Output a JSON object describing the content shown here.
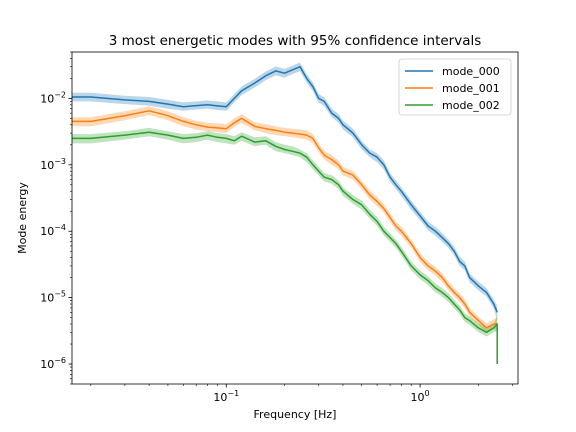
{
  "chart_data": {
    "type": "line",
    "title": "3 most energetic modes with 95% confidence intervals",
    "xlabel": "Frequency [Hz]",
    "ylabel": "Mode energy",
    "xscale": "log",
    "yscale": "log",
    "xlim": [
      0.016,
      3.2
    ],
    "ylim": [
      5e-07,
      0.05
    ],
    "x_ticks": [
      {
        "value": 0.1,
        "base": "10",
        "exp": "−1"
      },
      {
        "value": 1,
        "base": "10",
        "exp": "0"
      }
    ],
    "y_ticks": [
      {
        "value": 0.01,
        "base": "10",
        "exp": "−2"
      },
      {
        "value": 0.001,
        "base": "10",
        "exp": "−3"
      },
      {
        "value": 0.0001,
        "base": "10",
        "exp": "−4"
      },
      {
        "value": 1e-05,
        "base": "10",
        "exp": "−5"
      },
      {
        "value": 1e-06,
        "base": "10",
        "exp": "−6"
      }
    ],
    "grid": false,
    "legend_position": "top-right",
    "confidence_band": "95%",
    "series": [
      {
        "name": "mode_000",
        "color": "#1f77b4",
        "x": [
          0.016,
          0.02,
          0.03,
          0.04,
          0.05,
          0.06,
          0.07,
          0.08,
          0.09,
          0.1,
          0.11,
          0.12,
          0.14,
          0.16,
          0.18,
          0.2,
          0.22,
          0.24,
          0.26,
          0.28,
          0.3,
          0.32,
          0.35,
          0.38,
          0.4,
          0.45,
          0.5,
          0.55,
          0.6,
          0.65,
          0.7,
          0.75,
          0.8,
          0.9,
          1.0,
          1.1,
          1.2,
          1.3,
          1.4,
          1.5,
          1.6,
          1.7,
          1.8,
          2.0,
          2.2,
          2.4,
          2.5
        ],
        "values": [
          0.0105,
          0.0105,
          0.0095,
          0.009,
          0.0082,
          0.0075,
          0.0078,
          0.008,
          0.0077,
          0.0075,
          0.01,
          0.013,
          0.017,
          0.022,
          0.026,
          0.024,
          0.027,
          0.03,
          0.02,
          0.015,
          0.01,
          0.009,
          0.006,
          0.005,
          0.004,
          0.003,
          0.002,
          0.0015,
          0.0013,
          0.001,
          0.00065,
          0.0005,
          0.0004,
          0.00025,
          0.00017,
          0.00012,
          0.0001,
          8e-05,
          6.5e-05,
          5e-05,
          3.5e-05,
          3e-05,
          2e-05,
          1.5e-05,
          1.2e-05,
          8e-06,
          6e-06
        ],
        "ci_lower": [
          0.009,
          0.009,
          0.0082,
          0.0078,
          0.007,
          0.0065,
          0.0068,
          0.007,
          0.0067,
          0.0065,
          0.0087,
          0.0112,
          0.0146,
          0.0189,
          0.0224,
          0.0206,
          0.0232,
          0.0258,
          0.0172,
          0.0129,
          0.0086,
          0.0077,
          0.0052,
          0.0043,
          0.0034,
          0.0026,
          0.0017,
          0.0013,
          0.0011,
          0.00086,
          0.00056,
          0.00043,
          0.00034,
          0.00021,
          0.000146,
          0.000103,
          8.6e-05,
          6.9e-05,
          5.6e-05,
          4.3e-05,
          3e-05,
          2.6e-05,
          1.7e-05,
          1.29e-05,
          1.03e-05,
          6.9e-06,
          4.5e-06
        ],
        "ci_upper": [
          0.0122,
          0.0122,
          0.011,
          0.0105,
          0.0095,
          0.0087,
          0.009,
          0.0093,
          0.009,
          0.0087,
          0.0116,
          0.0151,
          0.0197,
          0.0255,
          0.0302,
          0.0278,
          0.0313,
          0.0348,
          0.0232,
          0.0174,
          0.0116,
          0.0104,
          0.007,
          0.0058,
          0.0046,
          0.0035,
          0.0023,
          0.0017,
          0.0015,
          0.00116,
          0.00075,
          0.00058,
          0.00046,
          0.00029,
          0.000197,
          0.000139,
          0.000116,
          9.3e-05,
          7.5e-05,
          5.8e-05,
          4.1e-05,
          3.5e-05,
          2.3e-05,
          1.74e-05,
          1.39e-05,
          9.3e-06,
          7.5e-06
        ]
      },
      {
        "name": "mode_001",
        "color": "#ff7f0e",
        "x": [
          0.016,
          0.02,
          0.03,
          0.04,
          0.05,
          0.06,
          0.07,
          0.08,
          0.09,
          0.1,
          0.11,
          0.12,
          0.14,
          0.16,
          0.18,
          0.2,
          0.22,
          0.24,
          0.26,
          0.28,
          0.3,
          0.32,
          0.35,
          0.38,
          0.4,
          0.45,
          0.5,
          0.55,
          0.6,
          0.65,
          0.7,
          0.75,
          0.8,
          0.9,
          1.0,
          1.1,
          1.2,
          1.3,
          1.4,
          1.5,
          1.6,
          1.7,
          1.8,
          2.0,
          2.2,
          2.4,
          2.5
        ],
        "values": [
          0.0045,
          0.0045,
          0.0055,
          0.0065,
          0.0055,
          0.0045,
          0.004,
          0.0037,
          0.0036,
          0.0035,
          0.0043,
          0.005,
          0.0038,
          0.0035,
          0.0033,
          0.0031,
          0.003,
          0.0029,
          0.0028,
          0.0025,
          0.0018,
          0.0014,
          0.0012,
          0.001,
          0.0008,
          0.0007,
          0.0005,
          0.00035,
          0.00028,
          0.00022,
          0.00016,
          0.00012,
          0.0001,
          6.5e-05,
          4e-05,
          3e-05,
          2.5e-05,
          2e-05,
          1.5e-05,
          1.2e-05,
          1e-05,
          8e-06,
          6e-06,
          4.5e-06,
          3.5e-06,
          4e-06,
          4e-06
        ],
        "ci_lower": [
          0.0038,
          0.0038,
          0.0047,
          0.0056,
          0.0047,
          0.0038,
          0.0034,
          0.0032,
          0.0031,
          0.003,
          0.0037,
          0.0043,
          0.0033,
          0.003,
          0.0028,
          0.0027,
          0.0026,
          0.0025,
          0.0024,
          0.0021,
          0.00155,
          0.0012,
          0.001,
          0.00086,
          0.00069,
          0.0006,
          0.00043,
          0.0003,
          0.00024,
          0.00019,
          0.000138,
          0.000103,
          8.6e-05,
          5.6e-05,
          3.44e-05,
          2.58e-05,
          2.15e-05,
          1.72e-05,
          1.29e-05,
          1.03e-05,
          8.6e-06,
          6.9e-06,
          5.2e-06,
          3.9e-06,
          3e-06,
          3.4e-06,
          3.1e-06
        ],
        "ci_upper": [
          0.0052,
          0.0052,
          0.0064,
          0.0076,
          0.0064,
          0.0052,
          0.0046,
          0.0043,
          0.0042,
          0.0041,
          0.005,
          0.0058,
          0.0044,
          0.0041,
          0.0038,
          0.0036,
          0.0035,
          0.0034,
          0.0033,
          0.0029,
          0.0021,
          0.00163,
          0.0014,
          0.00116,
          0.00093,
          0.00081,
          0.00058,
          0.00041,
          0.00033,
          0.00026,
          0.000186,
          0.000139,
          0.000116,
          7.5e-05,
          4.65e-05,
          3.49e-05,
          2.91e-05,
          2.33e-05,
          1.74e-05,
          1.39e-05,
          1.16e-05,
          9.3e-06,
          7e-06,
          5.2e-06,
          4.1e-06,
          4.7e-06,
          5.2e-06
        ]
      },
      {
        "name": "mode_002",
        "color": "#2ca02c",
        "x": [
          0.016,
          0.02,
          0.03,
          0.04,
          0.05,
          0.06,
          0.07,
          0.08,
          0.09,
          0.1,
          0.11,
          0.12,
          0.14,
          0.16,
          0.18,
          0.2,
          0.22,
          0.24,
          0.26,
          0.28,
          0.3,
          0.32,
          0.35,
          0.38,
          0.4,
          0.45,
          0.5,
          0.55,
          0.6,
          0.65,
          0.7,
          0.75,
          0.8,
          0.9,
          1.0,
          1.1,
          1.2,
          1.3,
          1.4,
          1.5,
          1.6,
          1.7,
          1.8,
          2.0,
          2.2,
          2.4,
          2.5,
          2.5
        ],
        "values": [
          0.0025,
          0.0025,
          0.0028,
          0.0031,
          0.0028,
          0.0025,
          0.0026,
          0.0028,
          0.0026,
          0.0025,
          0.0023,
          0.0027,
          0.0022,
          0.0023,
          0.0019,
          0.0017,
          0.0016,
          0.0015,
          0.0013,
          0.001,
          0.0008,
          0.00065,
          0.0006,
          0.0005,
          0.0004,
          0.0003,
          0.00025,
          0.00018,
          0.00014,
          0.0001,
          8e-05,
          6.5e-05,
          5e-05,
          3e-05,
          2.2e-05,
          1.8e-05,
          1.4e-05,
          1.2e-05,
          1e-05,
          8e-06,
          6.5e-06,
          5e-06,
          4.5e-06,
          3.5e-06,
          3e-06,
          3.5e-06,
          4e-06,
          1e-06
        ],
        "ci_lower": [
          0.0021,
          0.0021,
          0.0024,
          0.0027,
          0.0024,
          0.0021,
          0.0022,
          0.0024,
          0.0022,
          0.0021,
          0.002,
          0.0023,
          0.0019,
          0.002,
          0.0016,
          0.0015,
          0.0014,
          0.0013,
          0.0011,
          0.00086,
          0.00069,
          0.00056,
          0.00052,
          0.00043,
          0.00034,
          0.00026,
          0.00021,
          0.000155,
          0.00012,
          8.6e-05,
          6.9e-05,
          5.6e-05,
          4.3e-05,
          2.58e-05,
          1.89e-05,
          1.55e-05,
          1.2e-05,
          1.03e-05,
          8.6e-06,
          6.9e-06,
          5.6e-06,
          4.3e-06,
          3.9e-06,
          3e-06,
          2.6e-06,
          3e-06,
          3.1e-06,
          1e-06
        ],
        "ci_upper": [
          0.0029,
          0.0029,
          0.0032,
          0.0036,
          0.0032,
          0.0029,
          0.003,
          0.0032,
          0.003,
          0.0029,
          0.0027,
          0.0031,
          0.0026,
          0.0027,
          0.0022,
          0.002,
          0.0019,
          0.0017,
          0.0015,
          0.00116,
          0.00093,
          0.00075,
          0.0007,
          0.00058,
          0.00046,
          0.00035,
          0.00029,
          0.00021,
          0.000163,
          0.000116,
          9.3e-05,
          7.5e-05,
          5.8e-05,
          3.49e-05,
          2.56e-05,
          2.09e-05,
          1.63e-05,
          1.39e-05,
          1.16e-05,
          9.3e-06,
          7.5e-06,
          5.8e-06,
          5.2e-06,
          4.1e-06,
          3.5e-06,
          4.1e-06,
          5.2e-06,
          1e-06
        ]
      }
    ]
  }
}
